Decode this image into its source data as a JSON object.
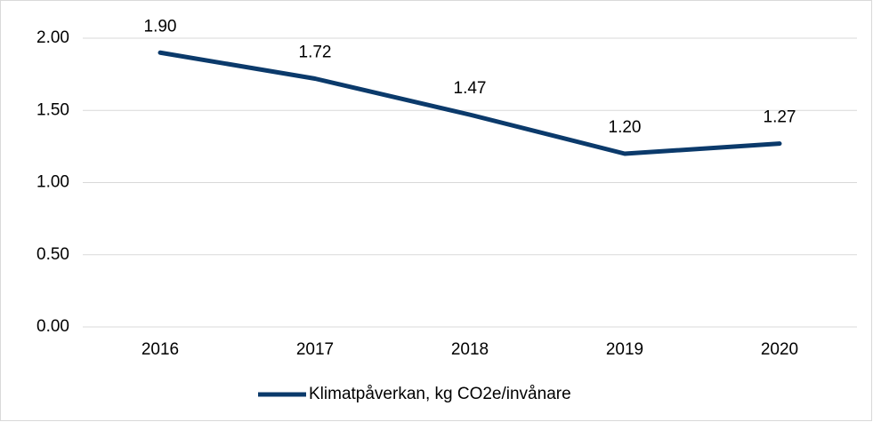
{
  "chart_data": {
    "type": "line",
    "categories": [
      "2016",
      "2017",
      "2018",
      "2019",
      "2020"
    ],
    "series": [
      {
        "name": "Klimatpåverkan, kg CO2e/invånare",
        "color": "#0b3a6b",
        "values": [
          1.9,
          1.72,
          1.47,
          1.2,
          1.27
        ],
        "value_labels": [
          "1.90",
          "1.72",
          "1.47",
          "1.20",
          "1.27"
        ]
      }
    ],
    "ylim": [
      0,
      2
    ],
    "yticks": [
      {
        "value": 0,
        "label": "0.00"
      },
      {
        "value": 0.5,
        "label": "0.50"
      },
      {
        "value": 1,
        "label": "1.00"
      },
      {
        "value": 1.5,
        "label": "1.50"
      },
      {
        "value": 2,
        "label": "2.00"
      }
    ],
    "grid": true,
    "legend": "bottom"
  }
}
